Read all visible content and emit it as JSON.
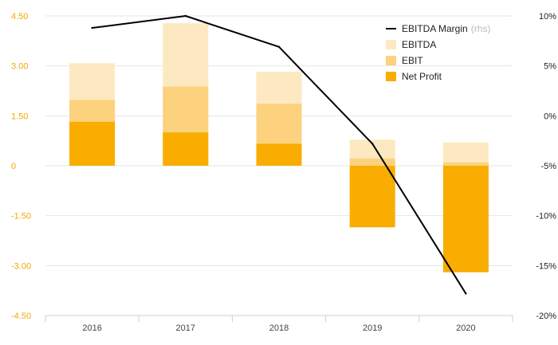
{
  "colors": {
    "ebitda": "#fde9c1",
    "ebit": "#fcd27f",
    "net_profit": "#f8ad00",
    "margin_line": "#000000",
    "left_tick": "#f2a900",
    "grid": "#e6e6e6"
  },
  "chart_data": {
    "type": "bar",
    "categories": [
      "2016",
      "2017",
      "2018",
      "2019",
      "2020"
    ],
    "series": [
      {
        "name": "EBITDA",
        "values": [
          3.08,
          4.28,
          2.82,
          0.78,
          0.7
        ]
      },
      {
        "name": "EBIT",
        "values": [
          1.98,
          2.38,
          1.86,
          0.22,
          0.1
        ]
      },
      {
        "name": "Net Profit",
        "values": [
          1.32,
          1.0,
          0.66,
          -1.85,
          -3.2
        ]
      }
    ],
    "line_series": {
      "name": "EBITDA Margin",
      "axis_note": "(rhs)",
      "values": [
        8.8,
        10.0,
        6.9,
        -2.8,
        -17.8
      ]
    },
    "left_axis": {
      "ylim": [
        -4.5,
        4.5
      ],
      "ticks": [
        "4.50",
        "3.00",
        "1.50",
        "0",
        "-1.50",
        "-3.00",
        "-4.50"
      ],
      "tick_values": [
        4.5,
        3.0,
        1.5,
        0,
        -1.5,
        -3.0,
        -4.5
      ]
    },
    "right_axis": {
      "ylim": [
        -20,
        10
      ],
      "ticks": [
        "10%",
        "5%",
        "0%",
        "-5%",
        "-10%",
        "-15%",
        "-20%"
      ],
      "tick_values": [
        10,
        5,
        0,
        -5,
        -10,
        -15,
        -20
      ]
    },
    "grid": true,
    "legend": {
      "position": "top-right",
      "items": [
        {
          "label": "EBITDA Margin",
          "suffix": "(rhs)",
          "kind": "line"
        },
        {
          "label": "EBITDA",
          "suffix": "",
          "kind": "box"
        },
        {
          "label": "EBIT",
          "suffix": "",
          "kind": "box"
        },
        {
          "label": "Net Profit",
          "suffix": "",
          "kind": "box"
        }
      ]
    }
  }
}
